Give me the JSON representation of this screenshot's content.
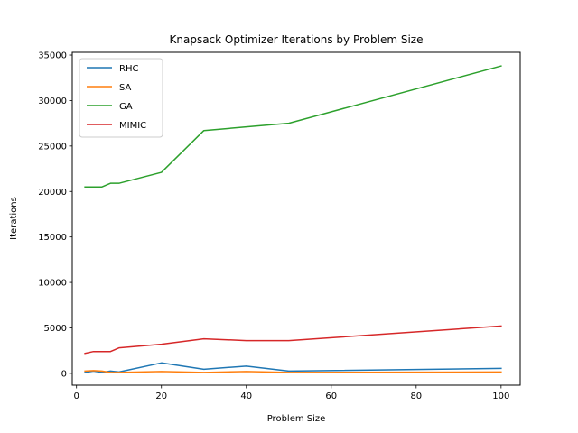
{
  "chart_data": {
    "type": "line",
    "title": "Knapsack Optimizer Iterations by Problem Size",
    "xlabel": "Problem Size",
    "ylabel": "Iterations",
    "xlim": [
      -1,
      104.5
    ],
    "ylim": [
      -1300,
      35300
    ],
    "xticks": [
      0,
      20,
      40,
      60,
      80,
      100
    ],
    "yticks": [
      0,
      5000,
      10000,
      15000,
      20000,
      25000,
      30000,
      35000
    ],
    "grid": false,
    "legend_position": "top-left",
    "series": [
      {
        "name": "RHC",
        "color": "#1f77b4",
        "x": [
          2,
          4,
          6,
          8,
          10,
          20,
          30,
          40,
          50,
          100
        ],
        "y": [
          100,
          250,
          100,
          250,
          150,
          1150,
          450,
          800,
          250,
          550
        ]
      },
      {
        "name": "SA",
        "color": "#ff7f0e",
        "x": [
          2,
          4,
          6,
          8,
          10,
          20,
          30,
          40,
          50,
          100
        ],
        "y": [
          250,
          300,
          250,
          100,
          100,
          200,
          100,
          200,
          100,
          150
        ]
      },
      {
        "name": "GA",
        "color": "#2ca02c",
        "x": [
          2,
          4,
          6,
          8,
          10,
          20,
          30,
          40,
          50,
          100
        ],
        "y": [
          20500,
          20500,
          20500,
          20900,
          20900,
          22100,
          26700,
          27100,
          27500,
          33800
        ]
      },
      {
        "name": "MIMIC",
        "color": "#d62728",
        "x": [
          2,
          4,
          6,
          8,
          10,
          20,
          30,
          40,
          50,
          100
        ],
        "y": [
          2200,
          2400,
          2400,
          2400,
          2800,
          3200,
          3800,
          3600,
          3600,
          5200
        ]
      }
    ]
  }
}
